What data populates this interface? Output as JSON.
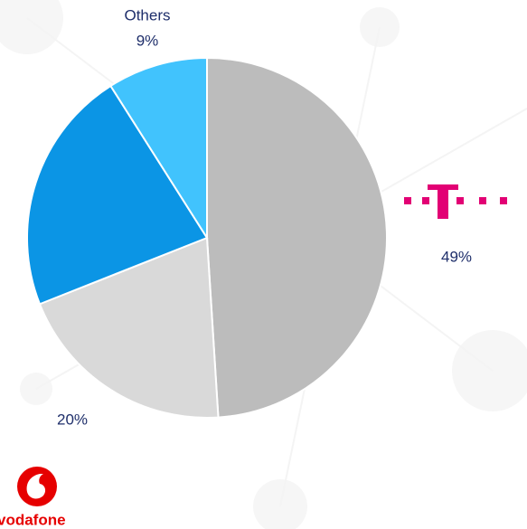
{
  "chart_data": {
    "type": "pie",
    "categories": [
      null,
      null,
      null,
      "Others"
    ],
    "values": [
      49,
      20,
      22,
      9
    ],
    "value_labels": [
      "49%",
      "20%",
      null,
      "9%"
    ],
    "colors": [
      "#bcbcbc",
      "#d9d9d9",
      "#0b95e5",
      "#41c3fd"
    ],
    "logo_text": "vodafone"
  }
}
